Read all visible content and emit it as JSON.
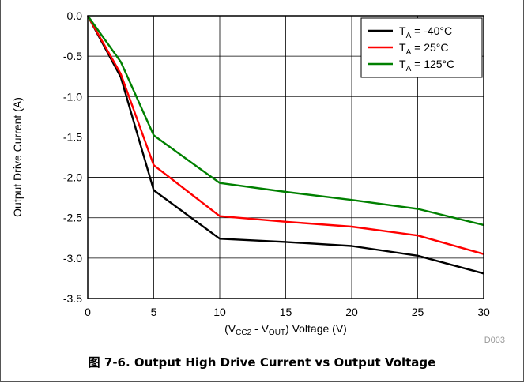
{
  "caption": "图 7-6. Output High Drive Current vs Output Voltage",
  "code": "D003",
  "chart_data": {
    "type": "line",
    "title": "",
    "xlabel_parts": [
      "(V",
      "CC2",
      " - V",
      "OUT",
      ")  Voltage (V)"
    ],
    "ylabel": "Output Drive Current (A)",
    "xlim": [
      0,
      30
    ],
    "ylim": [
      -3.5,
      0.0
    ],
    "xticks": [
      0,
      5,
      10,
      15,
      20,
      25,
      30
    ],
    "yticks": [
      0.0,
      -0.5,
      -1.0,
      -1.5,
      -2.0,
      -2.5,
      -3.0,
      -3.5
    ],
    "ytick_labels": [
      "0.0",
      "-0.5",
      "-1.0",
      "-1.5",
      "-2.0",
      "-2.5",
      "-3.0",
      "-3.5"
    ],
    "grid": true,
    "legend_position": "top-right",
    "series": [
      {
        "legend_prefix": "T",
        "legend_sub": "A",
        "legend_suffix": " =  -40°C",
        "color": "#000000",
        "x": [
          0,
          2.5,
          5,
          10,
          15,
          20,
          25,
          30
        ],
        "y": [
          0.0,
          -0.76,
          -2.16,
          -2.76,
          -2.8,
          -2.85,
          -2.97,
          -3.19
        ]
      },
      {
        "legend_prefix": "T",
        "legend_sub": "A",
        "legend_suffix": " = 25°C",
        "color": "#ff0000",
        "x": [
          0,
          2.5,
          5,
          10,
          15,
          20,
          25,
          30
        ],
        "y": [
          0.0,
          -0.72,
          -1.85,
          -2.48,
          -2.55,
          -2.61,
          -2.72,
          -2.95
        ]
      },
      {
        "legend_prefix": "T",
        "legend_sub": "A",
        "legend_suffix": " = 125°C",
        "color": "#008000",
        "x": [
          0,
          2.5,
          5,
          10,
          15,
          20,
          25,
          30
        ],
        "y": [
          0.0,
          -0.57,
          -1.48,
          -2.07,
          -2.18,
          -2.28,
          -2.39,
          -2.59
        ]
      }
    ]
  }
}
